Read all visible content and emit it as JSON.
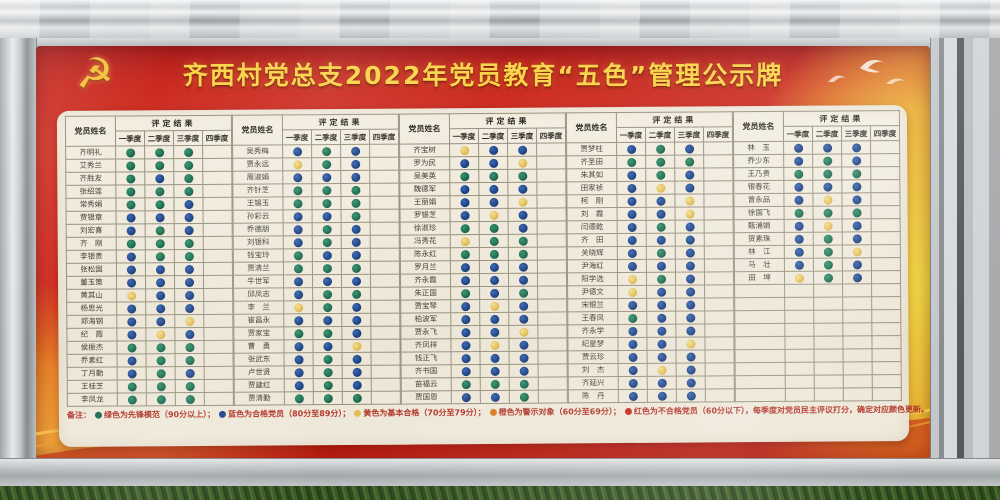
{
  "board": {
    "title": "齐西村党总支2022年党员教育“五色”管理公示牌",
    "emblem_glyph": "☭"
  },
  "table": {
    "name_header": "党员姓名",
    "result_header": "评定结果",
    "quarters": [
      "一季度",
      "二季度",
      "三季度",
      "四季度"
    ],
    "groups": [
      {
        "members": [
          {
            "name": "齐明礼",
            "q": [
              "g",
              "g",
              "g",
              ""
            ]
          },
          {
            "name": "艾秀兰",
            "q": [
              "g",
              "g",
              "g",
              ""
            ]
          },
          {
            "name": "齐胜友",
            "q": [
              "g",
              "b",
              "g",
              ""
            ]
          },
          {
            "name": "张绍莲",
            "q": [
              "g",
              "g",
              "g",
              ""
            ]
          },
          {
            "name": "常秀娟",
            "q": [
              "g",
              "g",
              "b",
              ""
            ]
          },
          {
            "name": "贾银章",
            "q": [
              "b",
              "b",
              "b",
              ""
            ]
          },
          {
            "name": "刘宏喜",
            "q": [
              "b",
              "g",
              "b",
              ""
            ]
          },
          {
            "name": "齐　刚",
            "q": [
              "g",
              "g",
              "g",
              ""
            ]
          },
          {
            "name": "李银贵",
            "q": [
              "b",
              "g",
              "g",
              ""
            ]
          },
          {
            "name": "张松国",
            "q": [
              "b",
              "b",
              "b",
              ""
            ]
          },
          {
            "name": "董玉策",
            "q": [
              "b",
              "b",
              "b",
              ""
            ]
          },
          {
            "name": "黄其山",
            "q": [
              "y",
              "b",
              "b",
              ""
            ]
          },
          {
            "name": "杨思光",
            "q": [
              "b",
              "b",
              "b",
              ""
            ]
          },
          {
            "name": "郑海钢",
            "q": [
              "b",
              "b",
              "y",
              ""
            ]
          },
          {
            "name": "纪　霞",
            "q": [
              "b",
              "y",
              "b",
              ""
            ]
          },
          {
            "name": "侯振杰",
            "q": [
              "g",
              "g",
              "g",
              ""
            ]
          },
          {
            "name": "乔素红",
            "q": [
              "b",
              "g",
              "g",
              ""
            ]
          },
          {
            "name": "丁月勤",
            "q": [
              "b",
              "g",
              "b",
              ""
            ]
          },
          {
            "name": "王桂芝",
            "q": [
              "g",
              "g",
              "g",
              ""
            ]
          },
          {
            "name": "李凤龙",
            "q": [
              "g",
              "g",
              "g",
              ""
            ]
          }
        ]
      },
      {
        "members": [
          {
            "name": "吴秀梅",
            "q": [
              "b",
              "g",
              "b",
              ""
            ]
          },
          {
            "name": "贾永远",
            "q": [
              "y",
              "g",
              "b",
              ""
            ]
          },
          {
            "name": "周淑娟",
            "q": [
              "b",
              "b",
              "b",
              ""
            ]
          },
          {
            "name": "齐针芝",
            "q": [
              "g",
              "g",
              "g",
              ""
            ]
          },
          {
            "name": "王锡玉",
            "q": [
              "g",
              "g",
              "g",
              ""
            ]
          },
          {
            "name": "孙彩云",
            "q": [
              "b",
              "b",
              "g",
              ""
            ]
          },
          {
            "name": "乔德朋",
            "q": [
              "b",
              "g",
              "b",
              ""
            ]
          },
          {
            "name": "刘银科",
            "q": [
              "b",
              "g",
              "b",
              ""
            ]
          },
          {
            "name": "钱宝玲",
            "q": [
              "g",
              "b",
              "b",
              ""
            ]
          },
          {
            "name": "贾清兰",
            "q": [
              "g",
              "g",
              "g",
              ""
            ]
          },
          {
            "name": "牛世军",
            "q": [
              "b",
              "b",
              "b",
              ""
            ]
          },
          {
            "name": "邱凤志",
            "q": [
              "b",
              "g",
              "g",
              ""
            ]
          },
          {
            "name": "李　兰",
            "q": [
              "y",
              "g",
              "b",
              ""
            ]
          },
          {
            "name": "崔昌永",
            "q": [
              "b",
              "b",
              "b",
              ""
            ]
          },
          {
            "name": "贾家宝",
            "q": [
              "g",
              "g",
              "b",
              ""
            ]
          },
          {
            "name": "曹　勇",
            "q": [
              "b",
              "b",
              "y",
              ""
            ]
          },
          {
            "name": "张武东",
            "q": [
              "b",
              "g",
              "b",
              ""
            ]
          },
          {
            "name": "卢世贤",
            "q": [
              "b",
              "g",
              "b",
              ""
            ]
          },
          {
            "name": "贾建红",
            "q": [
              "b",
              "g",
              "b",
              ""
            ]
          },
          {
            "name": "贾清勤",
            "q": [
              "g",
              "g",
              "g",
              ""
            ]
          }
        ]
      },
      {
        "members": [
          {
            "name": "齐宝树",
            "q": [
              "y",
              "b",
              "b",
              ""
            ]
          },
          {
            "name": "罗为民",
            "q": [
              "b",
              "b",
              "y",
              ""
            ]
          },
          {
            "name": "吴美英",
            "q": [
              "g",
              "g",
              "g",
              ""
            ]
          },
          {
            "name": "魏德军",
            "q": [
              "b",
              "b",
              "b",
              ""
            ]
          },
          {
            "name": "王丽娟",
            "q": [
              "b",
              "b",
              "y",
              ""
            ]
          },
          {
            "name": "罗银芝",
            "q": [
              "b",
              "y",
              "b",
              ""
            ]
          },
          {
            "name": "徐淑珍",
            "q": [
              "g",
              "g",
              "b",
              ""
            ]
          },
          {
            "name": "冯秀花",
            "q": [
              "y",
              "g",
              "g",
              ""
            ]
          },
          {
            "name": "陈永红",
            "q": [
              "g",
              "g",
              "g",
              ""
            ]
          },
          {
            "name": "罗月兰",
            "q": [
              "b",
              "b",
              "b",
              ""
            ]
          },
          {
            "name": "齐永霞",
            "q": [
              "b",
              "b",
              "b",
              ""
            ]
          },
          {
            "name": "朱正国",
            "q": [
              "g",
              "b",
              "g",
              ""
            ]
          },
          {
            "name": "贾宝琴",
            "q": [
              "b",
              "y",
              "b",
              ""
            ]
          },
          {
            "name": "柏波军",
            "q": [
              "b",
              "b",
              "b",
              ""
            ]
          },
          {
            "name": "贾永飞",
            "q": [
              "b",
              "b",
              "y",
              ""
            ]
          },
          {
            "name": "齐凤祥",
            "q": [
              "b",
              "y",
              "b",
              ""
            ]
          },
          {
            "name": "钱正飞",
            "q": [
              "b",
              "b",
              "b",
              ""
            ]
          },
          {
            "name": "齐书国",
            "q": [
              "b",
              "b",
              "b",
              ""
            ]
          },
          {
            "name": "苗福云",
            "q": [
              "g",
              "g",
              "g",
              ""
            ]
          },
          {
            "name": "贾国恩",
            "q": [
              "b",
              "b",
              "g",
              ""
            ]
          }
        ]
      },
      {
        "members": [
          {
            "name": "贾梦柱",
            "q": [
              "b",
              "g",
              "b",
              ""
            ]
          },
          {
            "name": "齐圣田",
            "q": [
              "g",
              "g",
              "g",
              ""
            ]
          },
          {
            "name": "朱其如",
            "q": [
              "b",
              "g",
              "b",
              ""
            ]
          },
          {
            "name": "田家祯",
            "q": [
              "b",
              "y",
              "b",
              ""
            ]
          },
          {
            "name": "柯　刚",
            "q": [
              "b",
              "b",
              "y",
              ""
            ]
          },
          {
            "name": "刘　霞",
            "q": [
              "b",
              "b",
              "y",
              ""
            ]
          },
          {
            "name": "闫德乾",
            "q": [
              "b",
              "g",
              "b",
              ""
            ]
          },
          {
            "name": "齐　田",
            "q": [
              "b",
              "b",
              "b",
              ""
            ]
          },
          {
            "name": "关晓辉",
            "q": [
              "b",
              "g",
              "b",
              ""
            ]
          },
          {
            "name": "尹海红",
            "q": [
              "b",
              "b",
              "b",
              ""
            ]
          },
          {
            "name": "阳学选",
            "q": [
              "y",
              "g",
              "b",
              ""
            ]
          },
          {
            "name": "尹德文",
            "q": [
              "y",
              "b",
              "b",
              ""
            ]
          },
          {
            "name": "宋银兰",
            "q": [
              "b",
              "b",
              "b",
              ""
            ]
          },
          {
            "name": "王春凤",
            "q": [
              "g",
              "b",
              "b",
              ""
            ]
          },
          {
            "name": "齐永学",
            "q": [
              "b",
              "b",
              "b",
              ""
            ]
          },
          {
            "name": "纪星梦",
            "q": [
              "b",
              "b",
              "y",
              ""
            ]
          },
          {
            "name": "贾云珍",
            "q": [
              "b",
              "b",
              "b",
              ""
            ]
          },
          {
            "name": "刘　杰",
            "q": [
              "b",
              "y",
              "b",
              ""
            ]
          },
          {
            "name": "齐延兴",
            "q": [
              "b",
              "b",
              "b",
              ""
            ]
          },
          {
            "name": "陈　丹",
            "q": [
              "b",
              "b",
              "b",
              ""
            ]
          }
        ]
      },
      {
        "members": [
          {
            "name": "林　玉",
            "q": [
              "b",
              "b",
              "b",
              ""
            ]
          },
          {
            "name": "乔少东",
            "q": [
              "b",
              "g",
              "b",
              ""
            ]
          },
          {
            "name": "王乃贵",
            "q": [
              "g",
              "g",
              "g",
              ""
            ]
          },
          {
            "name": "银春花",
            "q": [
              "b",
              "b",
              "b",
              ""
            ]
          },
          {
            "name": "曾永品",
            "q": [
              "b",
              "y",
              "b",
              ""
            ]
          },
          {
            "name": "徐国飞",
            "q": [
              "g",
              "g",
              "g",
              ""
            ]
          },
          {
            "name": "甄浦娟",
            "q": [
              "b",
              "y",
              "b",
              ""
            ]
          },
          {
            "name": "贺素珠",
            "q": [
              "b",
              "g",
              "b",
              ""
            ]
          },
          {
            "name": "林　江",
            "q": [
              "b",
              "g",
              "y",
              ""
            ]
          },
          {
            "name": "马　壮",
            "q": [
              "b",
              "g",
              "b",
              ""
            ]
          },
          {
            "name": "田　坤",
            "q": [
              "y",
              "g",
              "b",
              ""
            ]
          },
          {
            "name": "",
            "q": [
              "",
              "",
              "",
              ""
            ]
          },
          {
            "name": "",
            "q": [
              "",
              "",
              "",
              ""
            ]
          },
          {
            "name": "",
            "q": [
              "",
              "",
              "",
              ""
            ]
          },
          {
            "name": "",
            "q": [
              "",
              "",
              "",
              ""
            ]
          },
          {
            "name": "",
            "q": [
              "",
              "",
              "",
              ""
            ]
          },
          {
            "name": "",
            "q": [
              "",
              "",
              "",
              ""
            ]
          },
          {
            "name": "",
            "q": [
              "",
              "",
              "",
              ""
            ]
          },
          {
            "name": "",
            "q": [
              "",
              "",
              "",
              ""
            ]
          },
          {
            "name": "",
            "q": [
              "",
              "",
              "",
              ""
            ]
          }
        ]
      }
    ]
  },
  "dot_colors": {
    "g": {
      "light": "#36936e",
      "base": "#1d6e53",
      "dark": "#0f3d2d"
    },
    "b": {
      "light": "#3a66b0",
      "base": "#1d4387",
      "dark": "#122a57"
    },
    "y": {
      "light": "#f2de96",
      "base": "#e3bf55",
      "dark": "#bd9a2f"
    }
  },
  "legend": {
    "prefix": "备注：",
    "items": [
      {
        "color": "#1d6e53",
        "label": "绿色为先锋模范（90分以上）；"
      },
      {
        "color": "#1d4387",
        "label": "蓝色为合格党员（80分至89分）；"
      },
      {
        "color": "#e3bf55",
        "label": "黄色为基本合格（70分至79分）；"
      },
      {
        "color": "#db7c22",
        "label": "橙色为警示对象（60分至69分）；"
      },
      {
        "color": "#c92a1d",
        "label": "红色为不合格党员（60分以下），每季度对党员民主评议打分，确定对应颜色更新。"
      }
    ]
  }
}
